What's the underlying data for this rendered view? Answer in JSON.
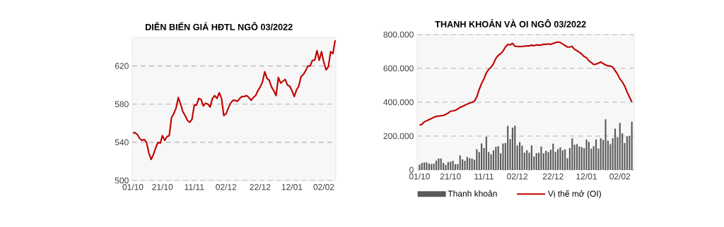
{
  "chart_data": [
    {
      "type": "line",
      "title": "DIỄN BIẾN GIÁ HĐTL NGÔ 03/2022",
      "categories": [
        "01/10",
        null,
        null,
        null,
        null,
        null,
        null,
        null,
        null,
        null,
        null,
        null,
        null,
        "21/10",
        null,
        null,
        null,
        null,
        null,
        null,
        null,
        null,
        null,
        null,
        null,
        null,
        null,
        "11/11",
        null,
        null,
        null,
        null,
        null,
        null,
        null,
        null,
        null,
        null,
        null,
        null,
        null,
        "02/12",
        null,
        null,
        null,
        null,
        null,
        null,
        null,
        null,
        null,
        null,
        null,
        null,
        null,
        null,
        "22/12",
        null,
        null,
        null,
        null,
        null,
        null,
        null,
        null,
        null,
        null,
        null,
        null,
        null,
        "12/01",
        null,
        null,
        null,
        null,
        null,
        null,
        null,
        null,
        null,
        null,
        null,
        null,
        null,
        "02/02",
        null,
        null,
        null,
        null,
        null
      ],
      "values": [
        550,
        550,
        548,
        544,
        542,
        543,
        540,
        529,
        522,
        527,
        534,
        540,
        539,
        547,
        542,
        546,
        547,
        566,
        570,
        576,
        587,
        580,
        572,
        568,
        563,
        561,
        564,
        579,
        579,
        586,
        585,
        578,
        581,
        580,
        577,
        586,
        589,
        586,
        592,
        586,
        568,
        570,
        576,
        581,
        584,
        584,
        583,
        586,
        588,
        588,
        589,
        587,
        584,
        587,
        589,
        594,
        598,
        603,
        614,
        607,
        605,
        598,
        594,
        589,
        608,
        602,
        604,
        606,
        600,
        599,
        594,
        588,
        595,
        599,
        609,
        611,
        615,
        620,
        620,
        626,
        626,
        636,
        626,
        635,
        624,
        616,
        619,
        635,
        633,
        647
      ],
      "color": "#c00000",
      "ylim": [
        500,
        650
      ],
      "yticks": [
        500,
        540,
        580,
        620
      ],
      "grid": "y"
    },
    {
      "type": "bar",
      "title": "THANH KHOẢN VÀ OI NGÔ 03/2022",
      "categories": [
        "01/10",
        null,
        null,
        null,
        null,
        null,
        null,
        null,
        null,
        null,
        null,
        null,
        null,
        "21/10",
        null,
        null,
        null,
        null,
        null,
        null,
        null,
        null,
        null,
        null,
        null,
        null,
        null,
        "11/11",
        null,
        null,
        null,
        null,
        null,
        null,
        null,
        null,
        null,
        null,
        null,
        null,
        null,
        "02/12",
        null,
        null,
        null,
        null,
        null,
        null,
        null,
        null,
        null,
        null,
        null,
        null,
        null,
        null,
        "22/12",
        null,
        null,
        null,
        null,
        null,
        null,
        null,
        null,
        null,
        null,
        null,
        null,
        null,
        "12/01",
        null,
        null,
        null,
        null,
        null,
        null,
        null,
        null,
        null,
        null,
        null,
        null,
        null,
        "02/02",
        null,
        null,
        null,
        null,
        null
      ],
      "series": [
        {
          "name": "Thanh khoản",
          "type": "bar",
          "color": "#595959",
          "values": [
            31000,
            41000,
            44000,
            44000,
            37000,
            35000,
            37000,
            55000,
            67000,
            67000,
            41000,
            30000,
            47000,
            48000,
            54000,
            34000,
            34000,
            86000,
            62000,
            54000,
            77000,
            69000,
            67000,
            60000,
            122000,
            106000,
            156000,
            129000,
            196000,
            106000,
            92000,
            116000,
            136000,
            140000,
            98000,
            156000,
            159000,
            260000,
            182000,
            250000,
            262000,
            145000,
            164000,
            143000,
            102000,
            116000,
            102000,
            145000,
            79000,
            99000,
            101000,
            138000,
            98000,
            113000,
            105000,
            119000,
            155000,
            106000,
            122000,
            133000,
            115000,
            121000,
            69000,
            129000,
            187000,
            149000,
            152000,
            138000,
            135000,
            128000,
            180000,
            166000,
            126000,
            140000,
            180000,
            126000,
            187000,
            177000,
            299000,
            173000,
            152000,
            187000,
            244000,
            194000,
            278000,
            216000,
            159000,
            199000,
            201000,
            285000
          ]
        },
        {
          "name": "Vị thế mở (OI)",
          "type": "line",
          "color": "#c00000",
          "values": [
            265000,
            270000,
            284000,
            291000,
            297000,
            304000,
            311000,
            316000,
            318000,
            320000,
            322000,
            328000,
            336000,
            347000,
            349000,
            352000,
            360000,
            370000,
            375000,
            382000,
            389000,
            395000,
            399000,
            406000,
            431000,
            475000,
            510000,
            538000,
            573000,
            594000,
            607000,
            628000,
            659000,
            677000,
            687000,
            702000,
            726000,
            742000,
            739000,
            748000,
            731000,
            730000,
            728000,
            730000,
            731000,
            733000,
            733000,
            737000,
            734000,
            739000,
            737000,
            739000,
            742000,
            742000,
            745000,
            742000,
            748000,
            752000,
            756000,
            753000,
            744000,
            735000,
            726000,
            726000,
            730000,
            712000,
            705000,
            695000,
            684000,
            670000,
            663000,
            645000,
            635000,
            623000,
            625000,
            631000,
            638000,
            628000,
            621000,
            614000,
            614000,
            607000,
            587000,
            566000,
            538000,
            520000,
            496000,
            461000,
            431000,
            402000
          ]
        }
      ],
      "ylim": [
        0,
        800000
      ],
      "yticks": [
        {
          "value": 0,
          "label": "0"
        },
        {
          "value": 200000,
          "label": "200.000"
        },
        {
          "value": 400000,
          "label": "400.000"
        },
        {
          "value": 600000,
          "label": "600.000"
        },
        {
          "value": 800000,
          "label": "800.000"
        }
      ],
      "grid": "y",
      "legend": "bottom"
    }
  ]
}
